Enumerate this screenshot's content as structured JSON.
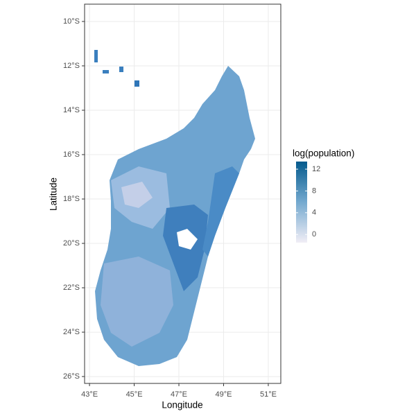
{
  "map": {
    "xlabel": "Longitude",
    "ylabel": "Latitude",
    "xlim": [
      42.78,
      51.56
    ],
    "ylim": [
      -26.31,
      -9.22
    ],
    "xticks": [
      {
        "value": 43,
        "label": "43°E"
      },
      {
        "value": 45,
        "label": "45°E"
      },
      {
        "value": 47,
        "label": "47°E"
      },
      {
        "value": 49,
        "label": "49°E"
      },
      {
        "value": 51,
        "label": "51°E"
      }
    ],
    "yticks": [
      {
        "value": -10,
        "label": "10°S"
      },
      {
        "value": -12,
        "label": "12°S"
      },
      {
        "value": -14,
        "label": "14°S"
      },
      {
        "value": -16,
        "label": "16°S"
      },
      {
        "value": -18,
        "label": "18°S"
      },
      {
        "value": -20,
        "label": "20°S"
      },
      {
        "value": -22,
        "label": "22°S"
      },
      {
        "value": -24,
        "label": "24°S"
      },
      {
        "value": -26,
        "label": "26°S"
      }
    ],
    "grid": true,
    "legend": {
      "title": "log(population)",
      "lim": [
        -1.5,
        13.4
      ],
      "ticks": [
        0,
        4,
        8,
        12
      ],
      "colors": [
        "#f1eef6",
        "#74a9cf",
        "#045a8d"
      ]
    }
  }
}
